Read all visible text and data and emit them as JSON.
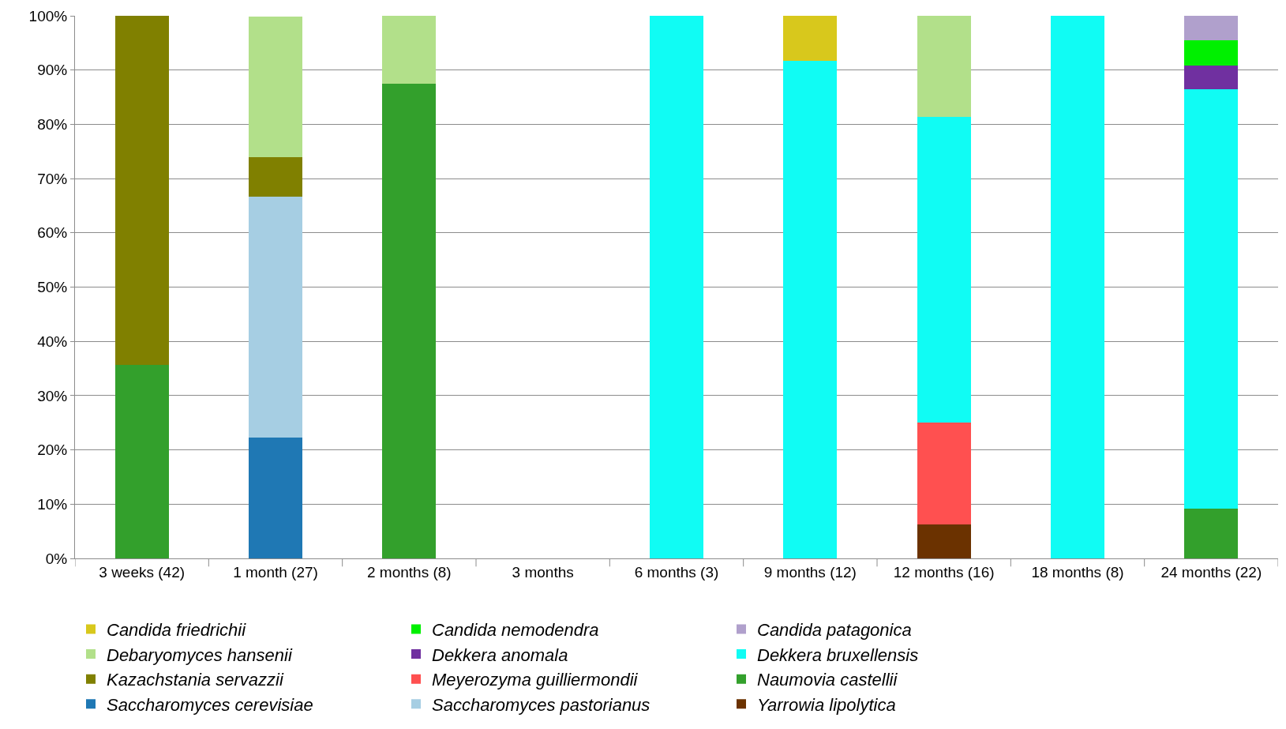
{
  "chart_data": {
    "type": "bar",
    "stacked": true,
    "categories": [
      "3 weeks (42)",
      "1 month (27)",
      "2 months (8)",
      "3 months",
      "6 months (3)",
      "9 months (12)",
      "12 months (16)",
      "18 months (8)",
      "24 months (22)"
    ],
    "series": [
      {
        "name": "Naumovia castellii",
        "color": "#33a02c",
        "values": [
          35.7,
          0,
          87.5,
          0,
          0,
          0,
          0,
          0,
          9.1
        ]
      },
      {
        "name": "Saccharomyces cerevisiae",
        "color": "#1f78b4",
        "values": [
          0,
          22.2,
          0,
          0,
          0,
          0,
          0,
          0,
          0
        ]
      },
      {
        "name": "Yarrowia lipolytica",
        "color": "#6b3200",
        "values": [
          0,
          0,
          0,
          0,
          0,
          0,
          6.3,
          0,
          0
        ]
      },
      {
        "name": "Meyerozyma guilliermondii",
        "color": "#ff5050",
        "values": [
          0,
          0,
          0,
          0,
          0,
          0,
          18.8,
          0,
          0
        ]
      },
      {
        "name": "Saccharomyces pastorianus",
        "color": "#a6cee3",
        "values": [
          0,
          44.4,
          0,
          0,
          0,
          0,
          0,
          0,
          0
        ]
      },
      {
        "name": "Dekkera bruxellensis",
        "color": "#10fcf4",
        "values": [
          0,
          0,
          0,
          0,
          100,
          91.7,
          56.2,
          100,
          77.3
        ]
      },
      {
        "name": "Kazachstania servazzii",
        "color": "#808000",
        "values": [
          64.3,
          7.4,
          0,
          0,
          0,
          0,
          0,
          0,
          0
        ]
      },
      {
        "name": "Dekkera anomala",
        "color": "#7030a0",
        "values": [
          0,
          0,
          0,
          0,
          0,
          0,
          0,
          0,
          4.5
        ]
      },
      {
        "name": "Candida nemodendra",
        "color": "#00f000",
        "values": [
          0,
          0,
          0,
          0,
          0,
          0,
          0,
          0,
          4.6
        ]
      },
      {
        "name": "Candida patagonica",
        "color": "#b0a0cc",
        "values": [
          0,
          0,
          0,
          0,
          0,
          0,
          0,
          0,
          4.5
        ]
      },
      {
        "name": "Debaryomyces hansenii",
        "color": "#b2e08a",
        "values": [
          0,
          25.9,
          12.5,
          0,
          0,
          0,
          18.7,
          0,
          0
        ]
      },
      {
        "name": "Candida friedrichii",
        "color": "#d8c81c",
        "values": [
          0,
          0,
          0,
          0,
          0,
          8.3,
          0,
          0,
          0
        ]
      }
    ],
    "ylim": [
      0,
      100
    ],
    "yticks": [
      {
        "value": 0,
        "label": "0%"
      },
      {
        "value": 10,
        "label": "10%"
      },
      {
        "value": 20,
        "label": "20%"
      },
      {
        "value": 30,
        "label": "30%"
      },
      {
        "value": 40,
        "label": "40%"
      },
      {
        "value": 50,
        "label": "50%"
      },
      {
        "value": 60,
        "label": "60%"
      },
      {
        "value": 70,
        "label": "70%"
      },
      {
        "value": 80,
        "label": "80%"
      },
      {
        "value": 90,
        "label": "90%"
      },
      {
        "value": 100,
        "label": "100%"
      }
    ],
    "grid": "y",
    "legend": "bottom"
  }
}
